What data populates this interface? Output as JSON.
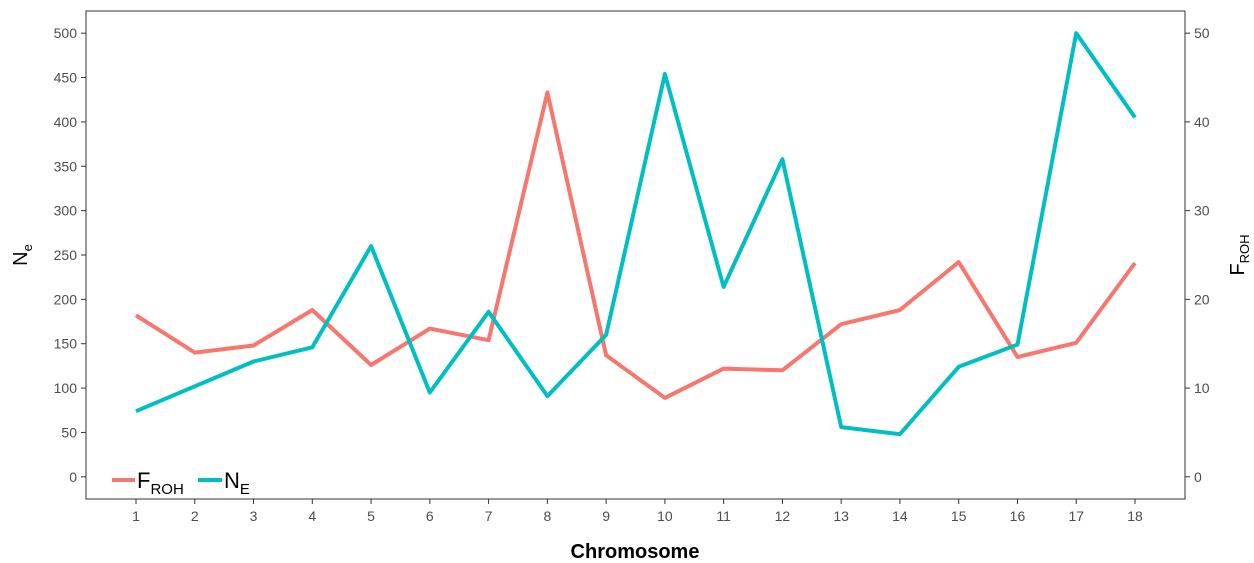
{
  "chart_data": {
    "type": "line",
    "xlabel": "Chromosome",
    "ylabel": {
      "main": "N",
      "sub": "e"
    },
    "y2label": {
      "main": "F",
      "sub": "ROH"
    },
    "categories": [
      1,
      2,
      3,
      4,
      5,
      6,
      7,
      8,
      9,
      10,
      11,
      12,
      13,
      14,
      15,
      16,
      17,
      18
    ],
    "ylim": [
      -25,
      525
    ],
    "y2lim": [
      -2.5,
      52.5
    ],
    "yticks": [
      0,
      50,
      100,
      150,
      200,
      250,
      300,
      350,
      400,
      450,
      500
    ],
    "y2ticks": [
      0,
      10,
      20,
      30,
      40,
      50
    ],
    "grid": false,
    "legend_position": "bottom-left",
    "series": [
      {
        "key": "froh",
        "name": {
          "main": "F",
          "sub": "ROH"
        },
        "axis": "right",
        "color": "#F8766D",
        "values": [
          18.2,
          14.0,
          14.8,
          18.8,
          12.6,
          16.7,
          15.4,
          43.3,
          13.7,
          8.9,
          12.2,
          12.0,
          17.2,
          18.8,
          24.2,
          13.5,
          15.1,
          24.1
        ]
      },
      {
        "key": "ne",
        "name": {
          "main": "N",
          "sub": "E"
        },
        "axis": "left",
        "color": "#00BFC4",
        "values": [
          74,
          102,
          130,
          146,
          260,
          95,
          186,
          91,
          160,
          454,
          214,
          358,
          56,
          48,
          124,
          149,
          500,
          405
        ]
      }
    ]
  }
}
